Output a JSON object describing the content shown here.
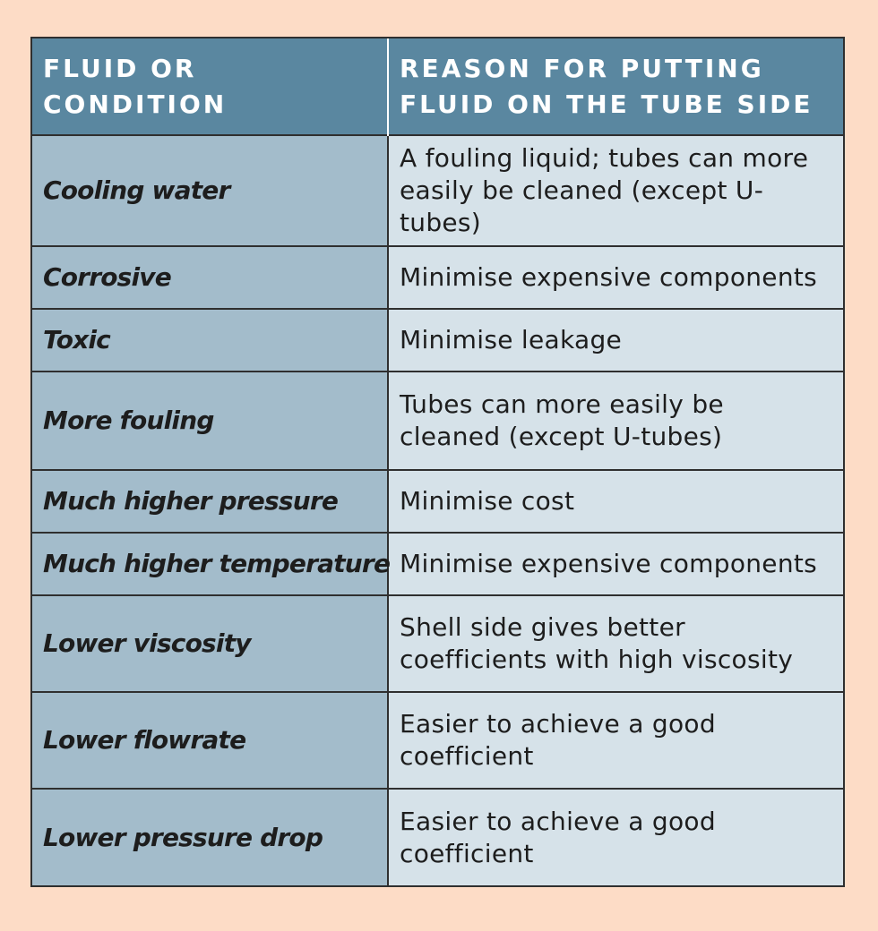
{
  "table": {
    "headers": {
      "condition": "FLUID OR CONDITION",
      "reason": "REASON FOR PUTTING FLUID ON THE TUBE SIDE"
    },
    "rows": [
      {
        "condition": "Cooling water",
        "reason": "A fouling liquid; tubes can more easily be cleaned (except U-tubes)"
      },
      {
        "condition": "Corrosive",
        "reason": "Minimise expensive components"
      },
      {
        "condition": "Toxic",
        "reason": "Minimise leakage"
      },
      {
        "condition": "More fouling",
        "reason": "Tubes can more easily be cleaned (except U-tubes)"
      },
      {
        "condition": "Much higher pressure",
        "reason": "Minimise cost"
      },
      {
        "condition": "Much higher temperature",
        "reason": "Minimise expensive components"
      },
      {
        "condition": "Lower viscosity",
        "reason": "Shell side gives better coefficients with high viscosity"
      },
      {
        "condition": "Lower flowrate",
        "reason": "Easier to achieve a good coefficient"
      },
      {
        "condition": "Lower pressure drop",
        "reason": "Easier to achieve a good coefficient"
      }
    ]
  }
}
